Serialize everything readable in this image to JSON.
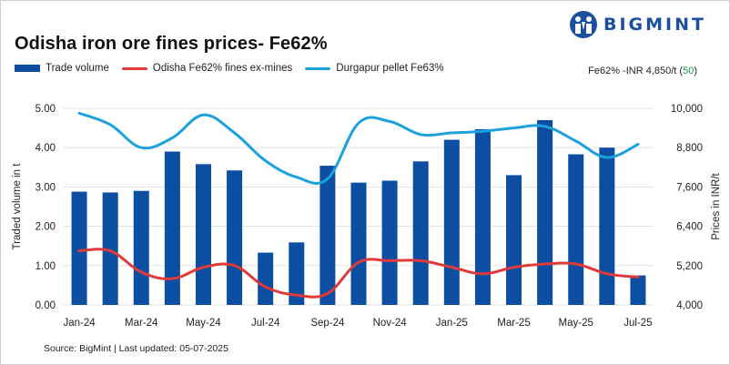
{
  "brand": {
    "name": "BIGMINT"
  },
  "header": {
    "title": "Odisha iron ore fines prices- Fe62%"
  },
  "note": {
    "prefix": "Fe62% -INR 4,850/t (",
    "change": "50",
    "suffix": ")"
  },
  "source": "Source: BigMint | Last updated: 05-07-2025",
  "colors": {
    "bar": "#0c4ea2",
    "odisha": "#e03a3a",
    "durgapur": "#1ba1dc",
    "change": "#1a9a3c"
  },
  "chart_data": {
    "type": "bar+line",
    "title": "Odisha iron ore fines prices- Fe62%",
    "categories": [
      "Jan-24",
      "Feb-24",
      "Mar-24",
      "Apr-24",
      "May-24",
      "Jun-24",
      "Jul-24",
      "Aug-24",
      "Sep-24",
      "Oct-24",
      "Nov-24",
      "Dec-24",
      "Jan-25",
      "Feb-25",
      "Mar-25",
      "Apr-25",
      "May-25",
      "Jun-25",
      "Jul-25"
    ],
    "x_tick_labels": [
      "Jan-24",
      "Mar-24",
      "May-24",
      "Jul-24",
      "Sep-24",
      "Nov-24",
      "Jan-25",
      "Mar-25",
      "May-25",
      "Jul-25"
    ],
    "series": [
      {
        "name": "Trade volume",
        "type": "bar",
        "axis": "left",
        "values": [
          2.88,
          2.86,
          2.9,
          3.9,
          3.58,
          3.42,
          1.33,
          1.59,
          3.54,
          3.11,
          3.16,
          3.65,
          4.2,
          4.47,
          3.3,
          4.7,
          3.83,
          4.0,
          0.75
        ]
      },
      {
        "name": "Odisha Fe62% fines ex-mines",
        "type": "line",
        "axis": "right",
        "values": [
          5650,
          5650,
          5000,
          4800,
          5150,
          5200,
          4550,
          4300,
          4350,
          5300,
          5350,
          5350,
          5150,
          4950,
          5150,
          5250,
          5250,
          4950,
          4850
        ]
      },
      {
        "name": "Durgapur pellet Fe63%",
        "type": "line",
        "axis": "right",
        "values": [
          9850,
          9500,
          8800,
          9100,
          9800,
          9250,
          8400,
          7900,
          7850,
          9550,
          9600,
          9200,
          9250,
          9300,
          9400,
          9450,
          9000,
          8500,
          8900
        ]
      }
    ],
    "ylabel_left": "Traded volume in t",
    "ylabel_right": "Prices in INR/t",
    "ylim_left": [
      0,
      5
    ],
    "ylim_right": [
      4000,
      10000
    ],
    "y_ticks_left": [
      "0.00",
      "1.00",
      "2.00",
      "3.00",
      "4.00",
      "5.00"
    ],
    "y_ticks_right": [
      "4,000",
      "5,200",
      "6,400",
      "7,600",
      "8,800",
      "10,000"
    ],
    "grid": true,
    "legend": "top-left"
  }
}
